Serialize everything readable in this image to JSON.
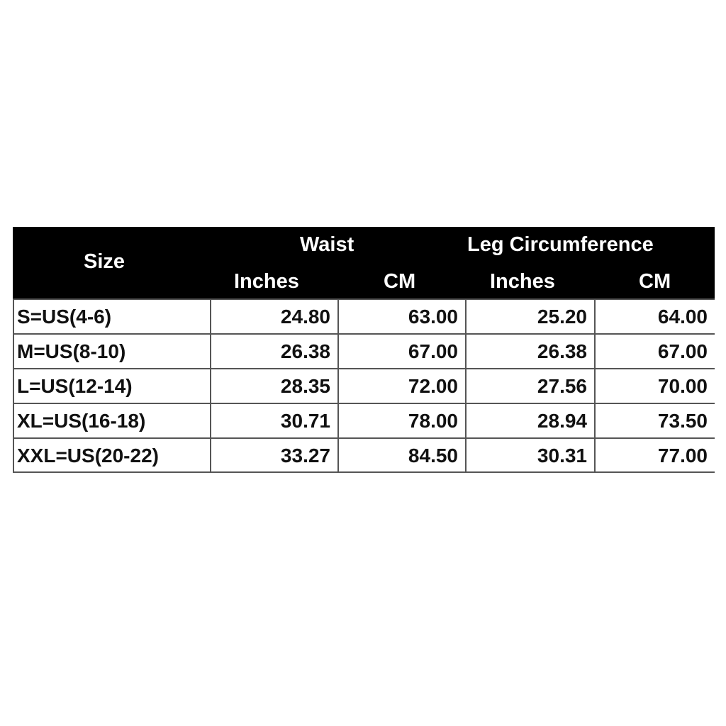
{
  "table": {
    "header": {
      "size": "Size",
      "waist": "Waist",
      "leg": "Leg Circumference",
      "units": [
        "Inches",
        "CM",
        "Inches",
        "CM"
      ]
    },
    "rows": [
      [
        "S=US(4-6)",
        "24.80",
        "63.00",
        "25.20",
        "64.00"
      ],
      [
        "M=US(8-10)",
        "26.38",
        "67.00",
        "26.38",
        "67.00"
      ],
      [
        "L=US(12-14)",
        "28.35",
        "72.00",
        "27.56",
        "70.00"
      ],
      [
        "XL=US(16-18)",
        "30.71",
        "78.00",
        "28.94",
        "73.50"
      ],
      [
        "XXL=US(20-22)",
        "33.27",
        "84.50",
        "30.31",
        "77.00"
      ]
    ]
  }
}
